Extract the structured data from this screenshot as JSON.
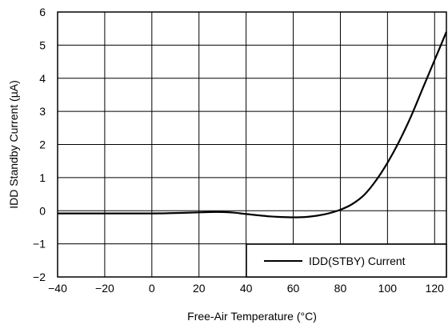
{
  "chart_data": {
    "type": "line",
    "xlabel": "Free-Air Temperature (°C)",
    "ylabel": "IDD Standby Current (µA)",
    "xlim": [
      -40,
      125
    ],
    "ylim": [
      -2,
      6
    ],
    "x_ticks": [
      -40,
      -20,
      0,
      20,
      40,
      60,
      80,
      100,
      120
    ],
    "x_tick_labels": [
      "−40",
      "−20",
      "0",
      "20",
      "40",
      "60",
      "80",
      "100",
      "120"
    ],
    "y_ticks": [
      -2,
      -1,
      0,
      1,
      2,
      3,
      4,
      5,
      6
    ],
    "y_tick_labels": [
      "−2",
      "−1",
      "0",
      "1",
      "2",
      "3",
      "4",
      "5",
      "6"
    ],
    "grid": true,
    "legend_position": "bottom-right",
    "series": [
      {
        "name": "IDD(STBY) Current",
        "color": "#000000",
        "x": [
          -40,
          -20,
          0,
          10,
          20,
          25,
          30,
          35,
          40,
          50,
          55,
          60,
          65,
          70,
          75,
          80,
          85,
          90,
          95,
          100,
          105,
          110,
          115,
          120,
          125
        ],
        "y": [
          -0.08,
          -0.08,
          -0.08,
          -0.07,
          -0.05,
          -0.04,
          -0.04,
          -0.06,
          -0.1,
          -0.17,
          -0.19,
          -0.2,
          -0.19,
          -0.15,
          -0.08,
          0.03,
          0.2,
          0.47,
          0.9,
          1.45,
          2.1,
          2.85,
          3.7,
          4.55,
          5.4
        ]
      }
    ]
  }
}
